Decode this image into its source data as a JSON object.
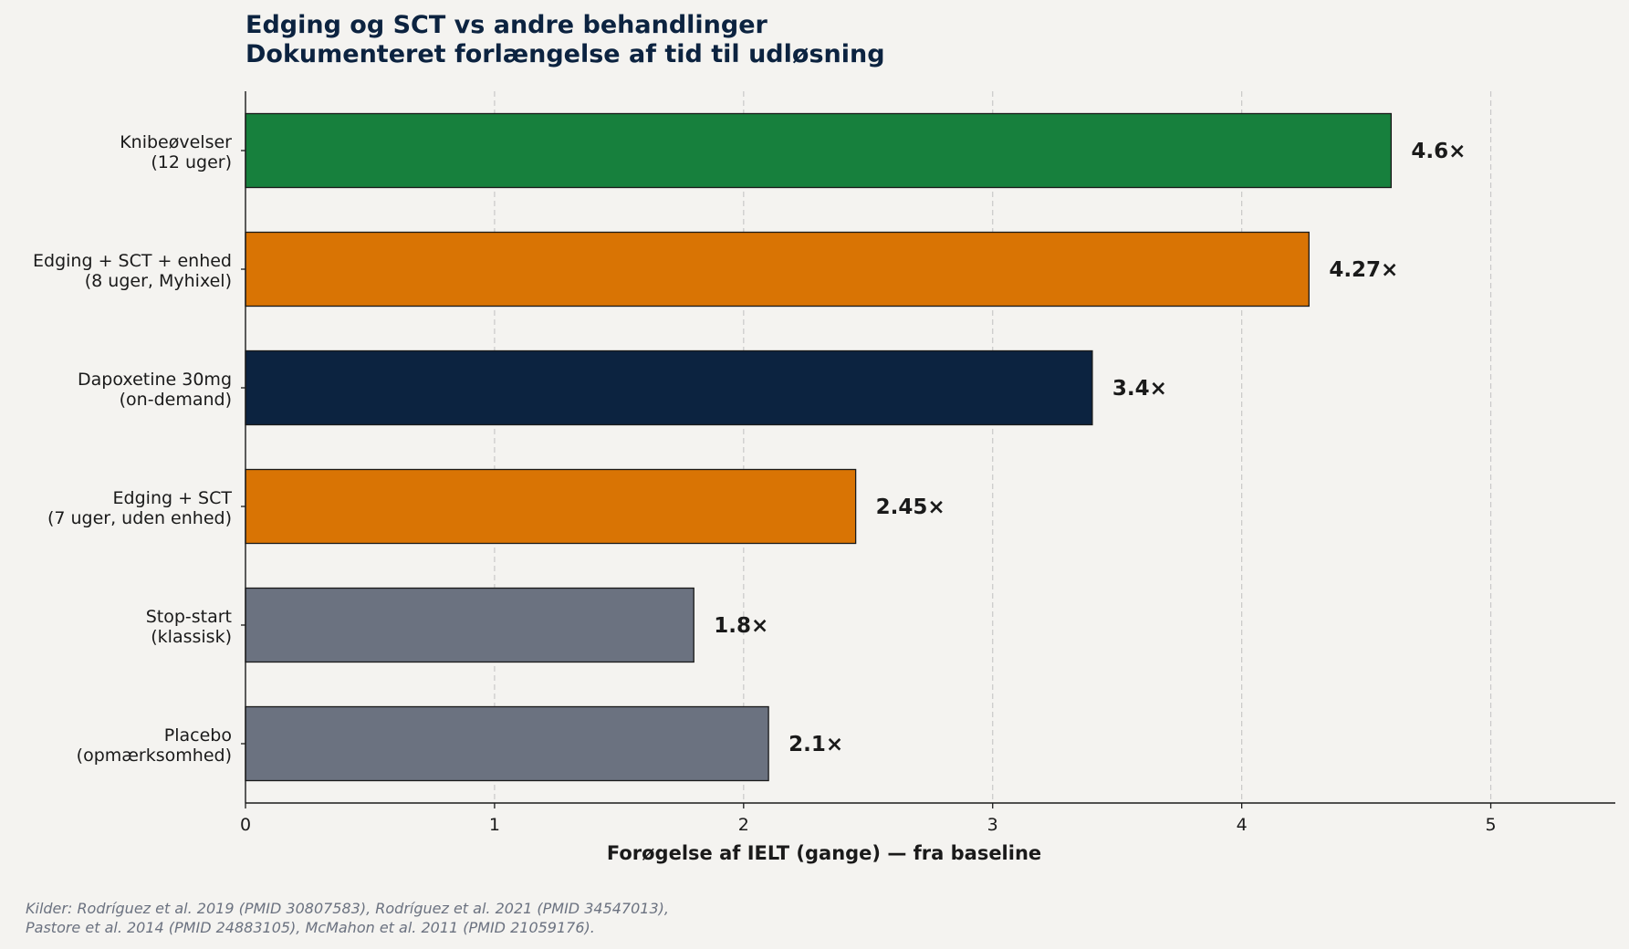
{
  "chart_data": {
    "type": "bar",
    "orientation": "horizontal",
    "title": [
      "Edging og SCT vs andre behandlinger",
      "Dokumenteret forlængelse af tid til udløsning"
    ],
    "xlabel": "Forøgelse af IELT (gange) — fra baseline",
    "ylabel": "",
    "xlim": [
      0,
      5.5
    ],
    "xticks": [
      0,
      1,
      2,
      3,
      4,
      5
    ],
    "grid": "vertical dashed",
    "bars": [
      {
        "label": [
          "Knibeøvelser",
          "(12 uger)"
        ],
        "value": 4.6,
        "value_label": "4.6×",
        "color": "#17803d"
      },
      {
        "label": [
          "Edging + SCT + enhed",
          "(8 uger, Myhixel)"
        ],
        "value": 4.27,
        "value_label": "4.27×",
        "color": "#d97404"
      },
      {
        "label": [
          "Dapoxetine 30mg",
          "(on-demand)"
        ],
        "value": 3.4,
        "value_label": "3.4×",
        "color": "#0c2340"
      },
      {
        "label": [
          "Edging + SCT",
          "(7 uger, uden enhed)"
        ],
        "value": 2.45,
        "value_label": "2.45×",
        "color": "#d97404"
      },
      {
        "label": [
          "Stop-start",
          "(klassisk)"
        ],
        "value": 1.8,
        "value_label": "1.8×",
        "color": "#6b7280"
      },
      {
        "label": [
          "Placebo",
          "(opmærksomhed)"
        ],
        "value": 2.1,
        "value_label": "2.1×",
        "color": "#6b7280"
      }
    ]
  },
  "sources": [
    "Kilder: Rodríguez et al. 2019 (PMID 30807583), Rodríguez et al. 2021 (PMID 34547013),",
    "Pastore et al. 2014 (PMID 24883105), McMahon et al. 2011 (PMID 21059176)."
  ],
  "colors": {
    "background": "#f4f3f0",
    "title": "#0c2340",
    "text": "#1a1a1a",
    "source": "#6b7280",
    "grid": "#c8c8c8"
  }
}
